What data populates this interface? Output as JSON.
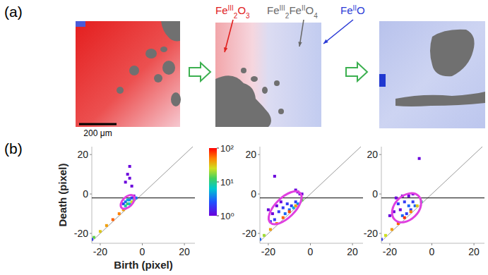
{
  "panel_labels": [
    "(a)",
    "(b)"
  ],
  "maps": {
    "labels": [
      {
        "color": "#e0201e",
        "parts": [
          {
            "text": "Fe"
          },
          {
            "text": "III",
            "sup": true
          },
          {
            "text": "2",
            "sub": true
          },
          {
            "text": "O"
          },
          {
            "text": "3",
            "sub": true
          }
        ]
      },
      {
        "color": "#6a6a6a",
        "parts": [
          {
            "text": "Fe"
          },
          {
            "text": "III",
            "sup": true
          },
          {
            "text": "2",
            "sub": true
          },
          {
            "text": "Fe"
          },
          {
            "text": "II",
            "sup": true
          },
          {
            "text": "O"
          },
          {
            "text": "4",
            "sub": true
          }
        ]
      },
      {
        "color": "#2a3ad6",
        "parts": [
          {
            "text": "Fe"
          },
          {
            "text": "II",
            "sup": true
          },
          {
            "text": "O"
          }
        ]
      }
    ],
    "scale_bar": {
      "text": "200 μm",
      "length": 200
    }
  },
  "chart_data": [
    {
      "type": "scatter",
      "x_label": "Birth (pixel)",
      "y_label": "Death (pixel)",
      "xlim": [
        -24,
        25
      ],
      "ylim": [
        -25,
        24
      ],
      "xticks": [
        -20,
        0,
        20
      ],
      "yticks": [
        -20,
        0,
        20
      ],
      "reference_line": -2,
      "highlight": {
        "cx": -7,
        "cy": -4,
        "rx": 4,
        "ry": 2.5
      },
      "colorbar": {
        "range": [
          1,
          100
        ],
        "ticks": [
          {
            "value": 1,
            "label": "10⁰"
          },
          {
            "value": 10,
            "label": "10¹"
          },
          {
            "value": 100,
            "label": "10²"
          }
        ]
      },
      "x": [
        -6,
        -7,
        -6,
        -8,
        -5,
        -9,
        -8,
        -7,
        -6,
        -5,
        -8,
        -7,
        -6,
        -4,
        -23,
        -20,
        -17,
        -14,
        -11,
        -9,
        -5,
        -24,
        -4,
        -3
      ],
      "y": [
        14,
        10,
        8,
        6,
        4,
        -5,
        -4,
        -3,
        -3,
        -2,
        -6,
        -5,
        -5,
        -3,
        -22,
        -19,
        -16,
        -13,
        -10,
        -8,
        -4,
        -23,
        -1,
        -2
      ],
      "counts": [
        1,
        1,
        1,
        1,
        1,
        2,
        3,
        5,
        4,
        2,
        8,
        12,
        6,
        10,
        15,
        30,
        40,
        60,
        50,
        40,
        25,
        2,
        1,
        3
      ]
    },
    {
      "type": "scatter",
      "xlim": [
        -24,
        25
      ],
      "ylim": [
        -25,
        24
      ],
      "xticks": [
        -20,
        0,
        20
      ],
      "yticks": [
        -20,
        0,
        20
      ],
      "reference_line": -2,
      "highlight": {
        "cx": -12,
        "cy": -7,
        "rx": 10,
        "ry": 5
      },
      "x": [
        -17,
        -7,
        -6,
        -5,
        -4,
        -20,
        -18,
        -16,
        -15,
        -14,
        -13,
        -12,
        -11,
        -10,
        -9,
        -8,
        -7,
        -6,
        -19,
        -17,
        -22,
        -19,
        -16,
        -13,
        -10,
        -7,
        -4,
        -24
      ],
      "y": [
        9,
        2,
        1,
        0,
        0,
        -8,
        -10,
        -6,
        -9,
        -4,
        -7,
        -10,
        -5,
        -8,
        -6,
        -7,
        -4,
        -5,
        -14,
        -13,
        -21,
        -18,
        -15,
        -12,
        -9,
        -6,
        -3,
        -23
      ],
      "counts": [
        1,
        1,
        1,
        1,
        1,
        1,
        1,
        1,
        2,
        1,
        2,
        3,
        2,
        3,
        2,
        5,
        2,
        4,
        2,
        2,
        20,
        40,
        50,
        60,
        70,
        40,
        15,
        3
      ]
    },
    {
      "type": "scatter",
      "xlim": [
        -24,
        25
      ],
      "ylim": [
        -25,
        24
      ],
      "xticks": [
        -20,
        0,
        20
      ],
      "yticks": [
        -20,
        0,
        20
      ],
      "reference_line": -2,
      "highlight": {
        "cx": -12,
        "cy": -7,
        "rx": 8,
        "ry": 6
      },
      "x": [
        -6,
        -17,
        -14,
        -11,
        -9,
        -16,
        -15,
        -13,
        -12,
        -11,
        -10,
        -9,
        -8,
        -14,
        -18,
        -20,
        -22,
        -19,
        -16,
        -13,
        -10,
        -7,
        -5,
        -24
      ],
      "y": [
        18,
        -2,
        -1,
        -1,
        0,
        -5,
        -8,
        -4,
        -10,
        -6,
        -8,
        -4,
        -6,
        -11,
        -9,
        -11,
        -21,
        -18,
        -15,
        -12,
        -9,
        -6,
        -4,
        -23
      ],
      "counts": [
        1,
        1,
        1,
        1,
        1,
        2,
        1,
        2,
        2,
        3,
        2,
        2,
        3,
        3,
        1,
        1,
        25,
        40,
        60,
        80,
        50,
        30,
        10,
        2
      ]
    }
  ]
}
